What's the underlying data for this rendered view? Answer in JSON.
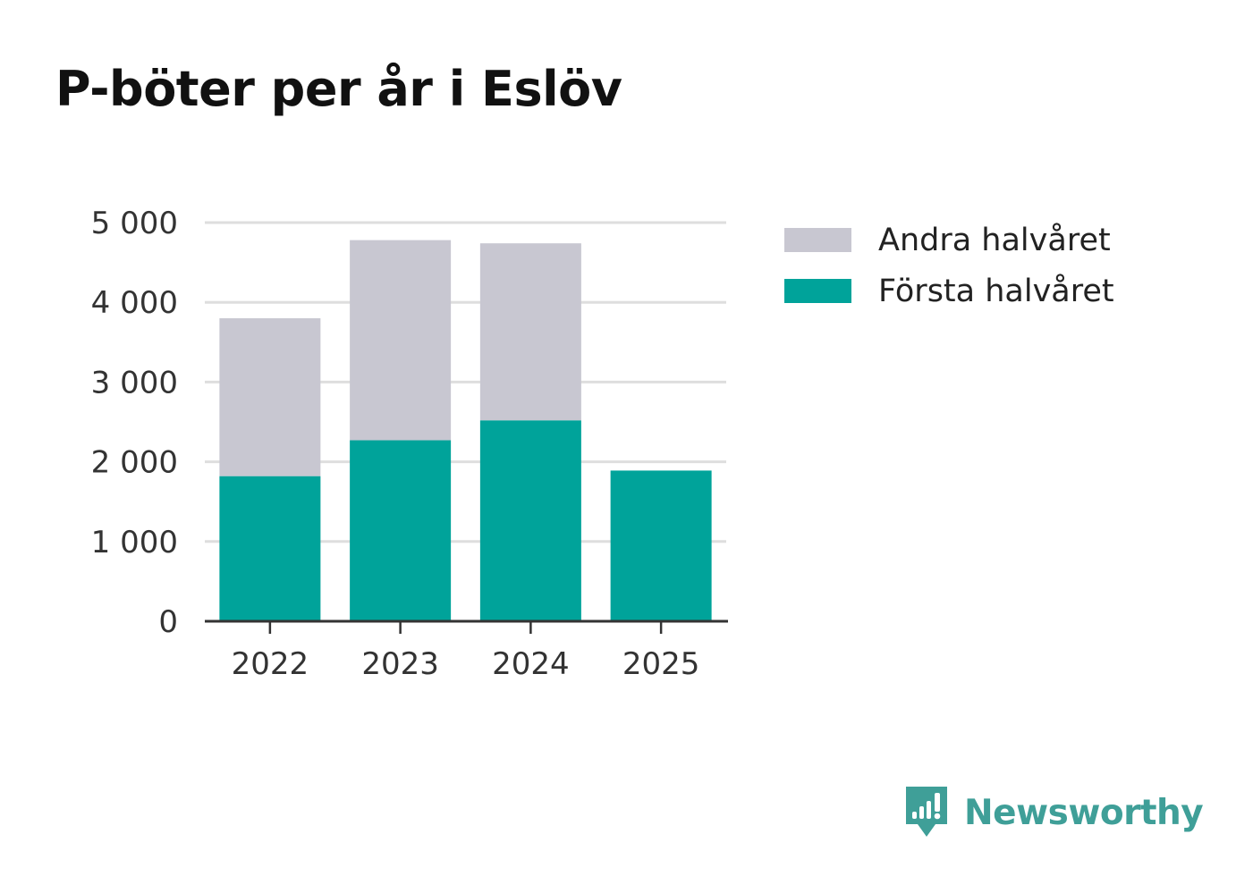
{
  "chart_data": {
    "type": "bar",
    "stacked": true,
    "title": "P-böter per år i Eslöv",
    "xlabel": "",
    "ylabel": "",
    "categories": [
      "2022",
      "2023",
      "2024",
      "2025"
    ],
    "series": [
      {
        "name": "Första halvåret",
        "color": "#00a39a",
        "values": [
          1820,
          2270,
          2520,
          1890
        ]
      },
      {
        "name": "Andra halvåret",
        "color": "#c8c7d1",
        "values": [
          1980,
          2510,
          2220,
          0
        ]
      }
    ],
    "ylim": [
      0,
      5000
    ],
    "yticks": [
      0,
      1000,
      2000,
      3000,
      4000,
      5000
    ],
    "ytick_labels": [
      "0",
      "1 000",
      "2 000",
      "3 000",
      "4 000",
      "5 000"
    ],
    "grid": true,
    "legend": [
      {
        "label": "Andra halvåret",
        "color": "#c8c7d1"
      },
      {
        "label": "Första halvåret",
        "color": "#00a39a"
      }
    ],
    "legend_position": "top-right"
  },
  "brand": {
    "name": "Newsworthy",
    "color": "#3f9f98"
  }
}
